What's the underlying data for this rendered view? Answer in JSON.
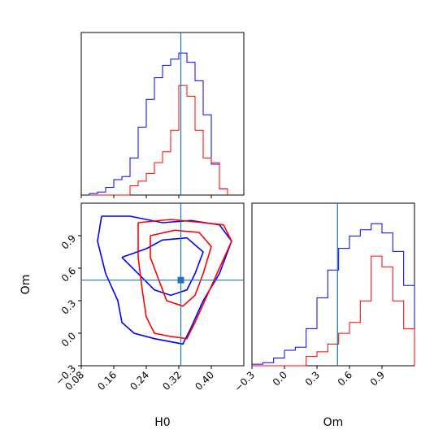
{
  "chart_data": {
    "type": "corner",
    "parameters": [
      "H0",
      "Om"
    ],
    "truth": {
      "H0": 0.325,
      "Om": 0.49
    },
    "colors": {
      "series_a": "#0000ff",
      "series_b": "#ff0000",
      "truth": "#1f77b4"
    },
    "axes": {
      "H0": {
        "label": "H0",
        "range": [
          0.08,
          0.48
        ],
        "ticks": [
          "0.08",
          "0.16",
          "0.24",
          "0.32",
          "0.40"
        ],
        "tick_values": [
          0.08,
          0.16,
          0.24,
          0.32,
          0.4
        ]
      },
      "Om": {
        "label": "Om",
        "range": [
          -0.3,
          1.2
        ],
        "ticks": [
          "−0.3",
          "0.0",
          "0.3",
          "0.6",
          "0.9"
        ],
        "tick_values": [
          -0.3,
          0.0,
          0.3,
          0.6,
          0.9
        ]
      }
    },
    "hist_H0": {
      "bin_edges": [
        0.1,
        0.12,
        0.14,
        0.16,
        0.18,
        0.2,
        0.22,
        0.24,
        0.26,
        0.28,
        0.3,
        0.32,
        0.34,
        0.36,
        0.38,
        0.4,
        0.42,
        0.44
      ],
      "series": [
        {
          "color_key": "series_a",
          "values": [
            0.01,
            0.02,
            0.05,
            0.1,
            0.12,
            0.24,
            0.44,
            0.62,
            0.76,
            0.84,
            0.88,
            0.92,
            0.86,
            0.74,
            0.52,
            0.2,
            0.04
          ]
        },
        {
          "color_key": "series_b",
          "values": [
            0.0,
            0.0,
            0.0,
            0.0,
            0.0,
            0.06,
            0.09,
            0.14,
            0.21,
            0.28,
            0.42,
            0.71,
            0.64,
            0.42,
            0.24,
            0.21,
            0.04
          ]
        }
      ]
    },
    "hist_Om": {
      "bin_edges": [
        -0.3,
        -0.2,
        -0.1,
        0.0,
        0.1,
        0.2,
        0.3,
        0.4,
        0.5,
        0.6,
        0.7,
        0.8,
        0.9,
        1.0,
        1.1,
        1.2
      ],
      "series": [
        {
          "color_key": "series_a",
          "values": [
            0.01,
            0.02,
            0.05,
            0.1,
            0.12,
            0.24,
            0.44,
            0.62,
            0.76,
            0.84,
            0.88,
            0.92,
            0.86,
            0.74,
            0.52
          ]
        },
        {
          "color_key": "series_b",
          "values": [
            0.0,
            0.0,
            0.0,
            0.0,
            0.0,
            0.06,
            0.09,
            0.14,
            0.21,
            0.28,
            0.42,
            0.71,
            0.64,
            0.42,
            0.24
          ]
        }
      ]
    },
    "contours": [
      {
        "color_key": "series_a",
        "level": "outer",
        "points": [
          [
            0.13,
            1.08
          ],
          [
            0.2,
            1.08
          ],
          [
            0.28,
            1.02
          ],
          [
            0.35,
            1.04
          ],
          [
            0.42,
            1.0
          ],
          [
            0.45,
            0.85
          ],
          [
            0.42,
            0.55
          ],
          [
            0.38,
            0.3
          ],
          [
            0.35,
            0.05
          ],
          [
            0.33,
            -0.1
          ],
          [
            0.26,
            -0.05
          ],
          [
            0.21,
            0.0
          ],
          [
            0.18,
            0.1
          ],
          [
            0.17,
            0.3
          ],
          [
            0.14,
            0.55
          ],
          [
            0.12,
            0.85
          ],
          [
            0.13,
            1.08
          ]
        ]
      },
      {
        "color_key": "series_a",
        "level": "inner",
        "points": [
          [
            0.18,
            0.7
          ],
          [
            0.24,
            0.78
          ],
          [
            0.28,
            0.86
          ],
          [
            0.34,
            0.88
          ],
          [
            0.38,
            0.75
          ],
          [
            0.36,
            0.55
          ],
          [
            0.34,
            0.4
          ],
          [
            0.3,
            0.35
          ],
          [
            0.26,
            0.4
          ],
          [
            0.22,
            0.55
          ],
          [
            0.18,
            0.7
          ]
        ]
      },
      {
        "color_key": "series_b",
        "level": "outer",
        "points": [
          [
            0.22,
            1.02
          ],
          [
            0.3,
            1.05
          ],
          [
            0.38,
            1.02
          ],
          [
            0.43,
            1.0
          ],
          [
            0.45,
            0.85
          ],
          [
            0.42,
            0.6
          ],
          [
            0.39,
            0.35
          ],
          [
            0.36,
            0.1
          ],
          [
            0.34,
            -0.05
          ],
          [
            0.3,
            -0.03
          ],
          [
            0.26,
            0.0
          ],
          [
            0.24,
            0.15
          ],
          [
            0.23,
            0.4
          ],
          [
            0.22,
            0.7
          ],
          [
            0.22,
            1.02
          ]
        ]
      },
      {
        "color_key": "series_b",
        "level": "inner",
        "points": [
          [
            0.25,
            0.9
          ],
          [
            0.31,
            0.95
          ],
          [
            0.37,
            0.93
          ],
          [
            0.4,
            0.8
          ],
          [
            0.38,
            0.55
          ],
          [
            0.36,
            0.35
          ],
          [
            0.33,
            0.25
          ],
          [
            0.29,
            0.3
          ],
          [
            0.27,
            0.5
          ],
          [
            0.25,
            0.7
          ],
          [
            0.25,
            0.9
          ]
        ]
      }
    ]
  }
}
